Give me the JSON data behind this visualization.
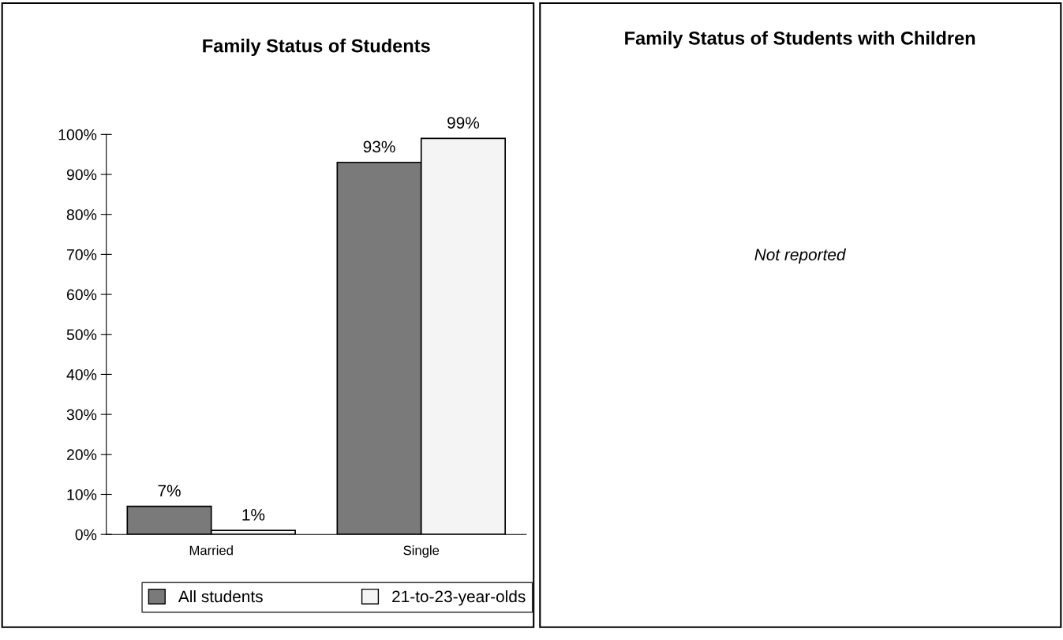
{
  "chart_data": [
    {
      "type": "bar",
      "title": "Family Status of Students",
      "categories": [
        "Married",
        "Single"
      ],
      "series": [
        {
          "name": "All students",
          "color": "#7a7a7a",
          "values": [
            7,
            93
          ],
          "value_labels": [
            "7%",
            "93%"
          ]
        },
        {
          "name": "21-to-23-year-olds",
          "color": "#f4f4f4",
          "values": [
            1,
            99
          ],
          "value_labels": [
            "1%",
            "99%"
          ]
        }
      ],
      "ylim": [
        0,
        100
      ],
      "yticks": [
        {
          "value": 0,
          "label": "0%"
        },
        {
          "value": 10,
          "label": "10%"
        },
        {
          "value": 20,
          "label": "20%"
        },
        {
          "value": 30,
          "label": "30%"
        },
        {
          "value": 40,
          "label": "40%"
        },
        {
          "value": 50,
          "label": "50%"
        },
        {
          "value": 60,
          "label": "60%"
        },
        {
          "value": 70,
          "label": "70%"
        },
        {
          "value": 80,
          "label": "80%"
        },
        {
          "value": 90,
          "label": "90%"
        },
        {
          "value": 100,
          "label": "100%"
        }
      ],
      "grid": false,
      "legend": "bottom"
    },
    {
      "type": "other",
      "title": "Family Status of Students with Children",
      "annotations": [
        "Not reported"
      ]
    }
  ]
}
